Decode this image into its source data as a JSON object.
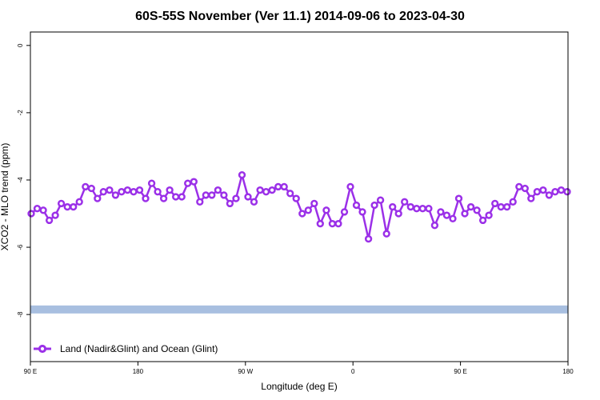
{
  "chart_data": {
    "type": "line",
    "title": "60S-55S November (Ver 11.1)   2014-09-06 to 2023-04-30",
    "xlabel": "Longitude (deg E)",
    "ylabel": "XCO2 - MLO trend (ppm)",
    "x_ticks": [
      "90 E",
      "180",
      "90 W",
      "0",
      "90 E",
      "180"
    ],
    "y_ticks": [
      "0",
      "-2",
      "-4",
      "-6",
      "-8"
    ],
    "ylim": [
      -9.4,
      0.4
    ],
    "grid": false,
    "legend_position": "bottom-left",
    "reference_band": {
      "y": -7.85,
      "color": "#a8bfe0"
    },
    "series": [
      {
        "name": "Land (Nadir&Glint) and Ocean (Glint)",
        "color": "#9b30e8",
        "values": [
          -5.0,
          -4.85,
          -4.9,
          -5.2,
          -5.05,
          -4.7,
          -4.8,
          -4.8,
          -4.65,
          -4.2,
          -4.25,
          -4.55,
          -4.35,
          -4.3,
          -4.45,
          -4.35,
          -4.3,
          -4.35,
          -4.3,
          -4.55,
          -4.1,
          -4.35,
          -4.55,
          -4.3,
          -4.5,
          -4.5,
          -4.1,
          -4.05,
          -4.65,
          -4.45,
          -4.45,
          -4.3,
          -4.45,
          -4.7,
          -4.55,
          -3.85,
          -4.5,
          -4.65,
          -4.3,
          -4.35,
          -4.3,
          -4.2,
          -4.2,
          -4.4,
          -4.55,
          -5.0,
          -4.9,
          -4.7,
          -5.3,
          -4.9,
          -5.3,
          -5.3,
          -4.95,
          -4.2,
          -4.75,
          -4.95,
          -5.75,
          -4.75,
          -4.6,
          -5.6,
          -4.8,
          -5.0,
          -4.65,
          -4.8,
          -4.85,
          -4.85,
          -4.85,
          -5.35,
          -4.95,
          -5.05,
          -5.15,
          -4.55,
          -5.0,
          -4.8,
          -4.9,
          -5.2,
          -5.05,
          -4.7,
          -4.8,
          -4.8,
          -4.65,
          -4.2,
          -4.25,
          -4.55,
          -4.35,
          -4.3,
          -4.45,
          -4.35,
          -4.3,
          -4.35
        ]
      }
    ]
  }
}
